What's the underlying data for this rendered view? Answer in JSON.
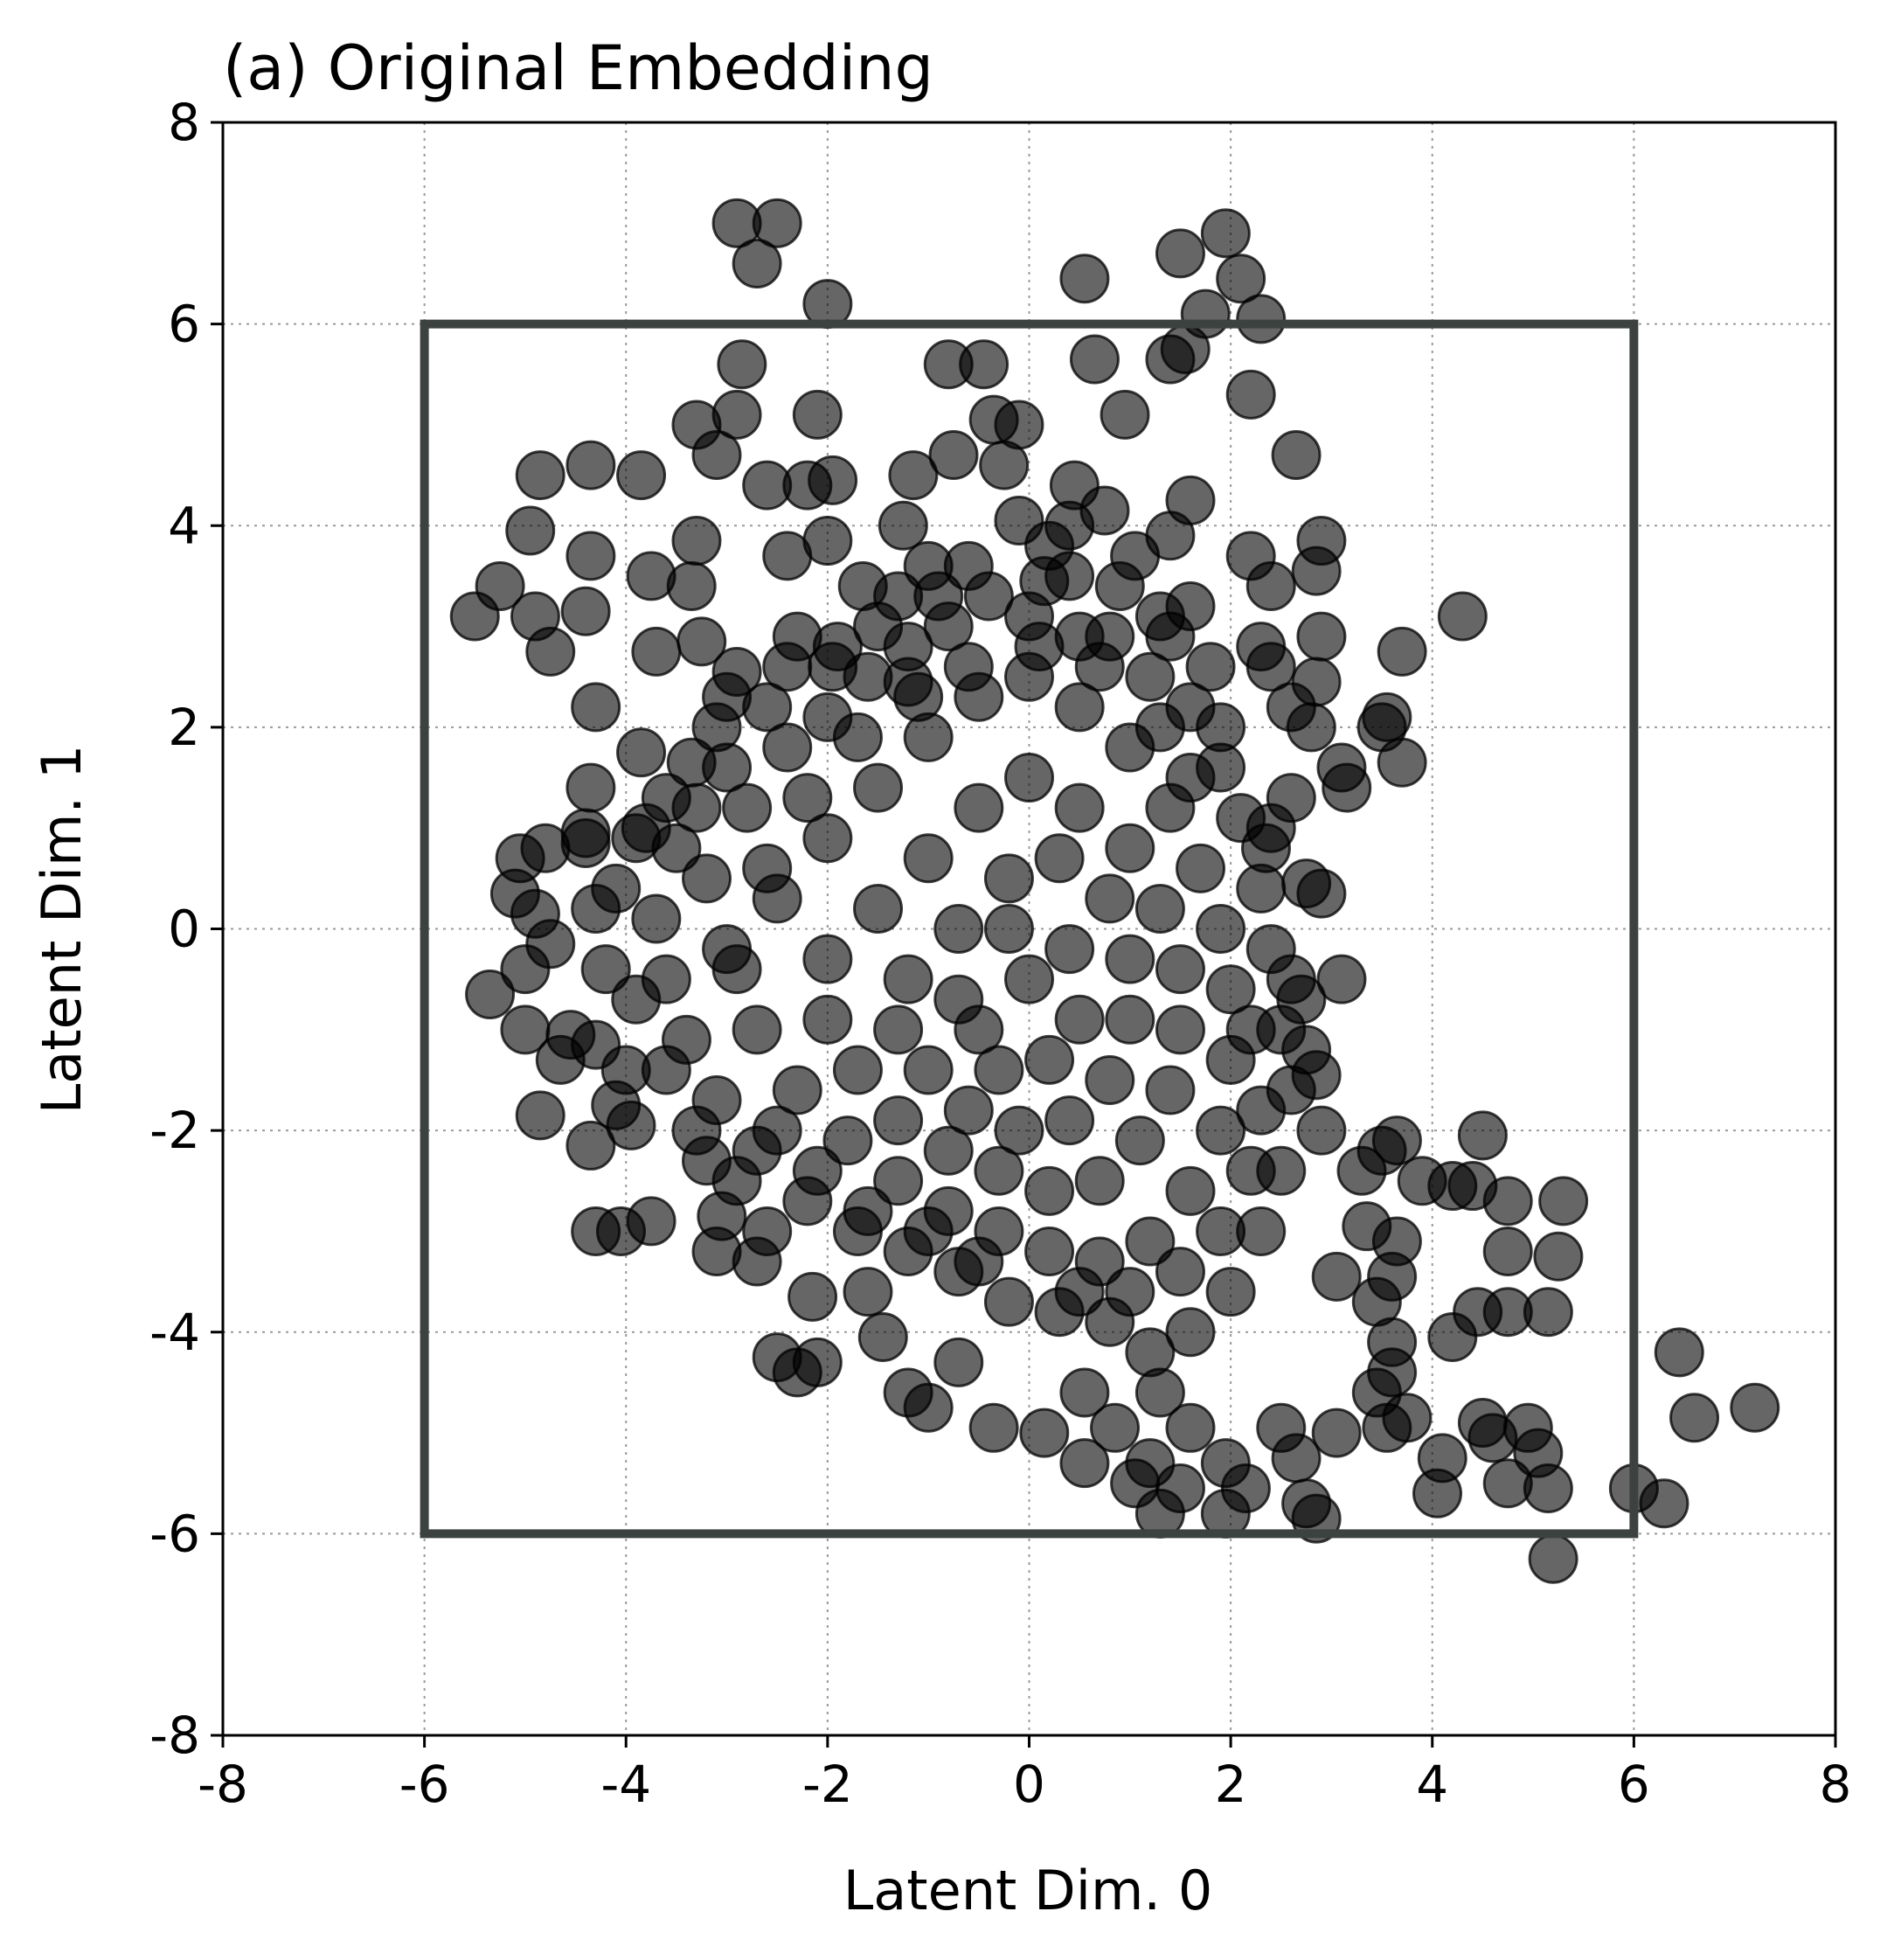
{
  "chart_data": {
    "type": "scatter",
    "title": "(a) Original Embedding",
    "xlabel": "Latent Dim. 0",
    "ylabel": "Latent Dim. 1",
    "xlim": [
      -8,
      8
    ],
    "ylim": [
      -8,
      8
    ],
    "xticks": [
      -8,
      -6,
      -4,
      -2,
      0,
      2,
      4,
      6,
      8
    ],
    "yticks": [
      -8,
      -6,
      -4,
      -2,
      0,
      2,
      4,
      6,
      8
    ],
    "xtick_labels": [
      "-8",
      "-6",
      "-4",
      "-2",
      "0",
      "2",
      "4",
      "6",
      "8"
    ],
    "ytick_labels": [
      "-8",
      "-6",
      "-4",
      "-2",
      "0",
      "2",
      "4",
      "6",
      "8"
    ],
    "grid": true,
    "marker_color": "#000000",
    "marker_alpha": 0.6,
    "box_color": "#3b4240",
    "box": {
      "x": [
        -6,
        6
      ],
      "y": [
        -6,
        6
      ]
    },
    "points": [
      [
        -2.9,
        7.0
      ],
      [
        -2.5,
        7.0
      ],
      [
        -2.7,
        6.6
      ],
      [
        -2.0,
        6.2
      ],
      [
        1.95,
        6.9
      ],
      [
        1.5,
        6.7
      ],
      [
        2.1,
        6.45
      ],
      [
        0.55,
        6.45
      ],
      [
        1.75,
        6.1
      ],
      [
        2.3,
        6.05
      ],
      [
        -2.85,
        5.6
      ],
      [
        -0.8,
        5.6
      ],
      [
        -0.45,
        5.6
      ],
      [
        0.65,
        5.65
      ],
      [
        1.4,
        5.65
      ],
      [
        1.55,
        5.75
      ],
      [
        2.2,
        5.3
      ],
      [
        -2.9,
        5.1
      ],
      [
        -3.3,
        5.0
      ],
      [
        -2.1,
        5.1
      ],
      [
        -0.35,
        5.05
      ],
      [
        -0.1,
        5.0
      ],
      [
        0.95,
        5.1
      ],
      [
        2.65,
        4.7
      ],
      [
        -4.85,
        4.5
      ],
      [
        -4.35,
        4.6
      ],
      [
        -3.85,
        4.5
      ],
      [
        -3.1,
        4.7
      ],
      [
        -2.6,
        4.4
      ],
      [
        -2.2,
        4.4
      ],
      [
        -1.95,
        4.45
      ],
      [
        -1.15,
        4.5
      ],
      [
        -0.75,
        4.7
      ],
      [
        -0.25,
        4.6
      ],
      [
        0.45,
        4.4
      ],
      [
        1.6,
        4.25
      ],
      [
        -4.95,
        3.95
      ],
      [
        -3.3,
        3.85
      ],
      [
        -2.0,
        3.85
      ],
      [
        -1.25,
        4.0
      ],
      [
        -0.1,
        4.05
      ],
      [
        0.75,
        4.15
      ],
      [
        1.05,
        3.7
      ],
      [
        1.4,
        3.9
      ],
      [
        2.2,
        3.7
      ],
      [
        2.9,
        3.85
      ],
      [
        -5.25,
        3.4
      ],
      [
        -4.35,
        3.7
      ],
      [
        -3.75,
        3.5
      ],
      [
        -3.35,
        3.4
      ],
      [
        -2.4,
        3.7
      ],
      [
        -1.65,
        3.4
      ],
      [
        -0.9,
        3.3
      ],
      [
        0.15,
        3.45
      ],
      [
        1.6,
        3.2
      ],
      [
        2.4,
        3.4
      ],
      [
        2.85,
        3.55
      ],
      [
        4.3,
        3.1
      ],
      [
        -5.5,
        3.1
      ],
      [
        -4.9,
        3.1
      ],
      [
        -4.4,
        3.15
      ],
      [
        -3.25,
        2.85
      ],
      [
        -2.3,
        2.9
      ],
      [
        -1.5,
        3.0
      ],
      [
        0.5,
        2.9
      ],
      [
        1.3,
        3.1
      ],
      [
        2.3,
        2.8
      ],
      [
        2.9,
        2.9
      ],
      [
        -4.75,
        2.75
      ],
      [
        -3.7,
        2.75
      ],
      [
        -2.9,
        2.55
      ],
      [
        -1.95,
        2.6
      ],
      [
        2.4,
        2.6
      ],
      [
        2.85,
        2.45
      ],
      [
        3.7,
        2.75
      ],
      [
        -4.3,
        2.2
      ],
      [
        -3.0,
        2.3
      ],
      [
        -1.2,
        2.45
      ],
      [
        2.6,
        2.2
      ],
      [
        3.55,
        2.1
      ],
      [
        -3.1,
        2.0
      ],
      [
        1.9,
        2.0
      ],
      [
        2.8,
        2.0
      ],
      [
        3.5,
        2.0
      ],
      [
        -3.85,
        1.75
      ],
      [
        -3.35,
        1.65
      ],
      [
        3.1,
        1.6
      ],
      [
        3.7,
        1.65
      ],
      [
        -4.35,
        1.4
      ],
      [
        -3.6,
        1.3
      ],
      [
        2.6,
        1.3
      ],
      [
        3.15,
        1.4
      ],
      [
        -4.4,
        0.95
      ],
      [
        -3.8,
        1.0
      ],
      [
        2.4,
        1.0
      ],
      [
        -5.05,
        0.7
      ],
      [
        -4.8,
        0.8
      ],
      [
        -4.4,
        0.85
      ],
      [
        2.35,
        0.8
      ],
      [
        -5.1,
        0.35
      ],
      [
        -4.9,
        0.15
      ],
      [
        -4.3,
        0.2
      ],
      [
        2.75,
        0.45
      ],
      [
        2.9,
        0.35
      ],
      [
        -4.75,
        -0.15
      ],
      [
        -5.0,
        -0.4
      ],
      [
        -4.2,
        -0.4
      ],
      [
        2.6,
        -0.5
      ],
      [
        3.1,
        -0.5
      ],
      [
        -5.35,
        -0.65
      ],
      [
        -5.0,
        -1.0
      ],
      [
        -4.55,
        -1.05
      ],
      [
        2.7,
        -0.7
      ],
      [
        -4.65,
        -1.3
      ],
      [
        -4.3,
        -1.15
      ],
      [
        2.75,
        -1.2
      ],
      [
        2.85,
        -1.45
      ],
      [
        -4.85,
        -1.85
      ],
      [
        -4.1,
        -1.75
      ],
      [
        -3.95,
        -1.95
      ],
      [
        -4.35,
        -2.15
      ],
      [
        2.9,
        -2.0
      ],
      [
        3.3,
        -2.4
      ],
      [
        3.5,
        -2.2
      ],
      [
        3.65,
        -2.1
      ],
      [
        4.5,
        -2.05
      ],
      [
        -3.2,
        -2.3
      ],
      [
        3.9,
        -2.5
      ],
      [
        4.2,
        -2.55
      ],
      [
        4.4,
        -2.55
      ],
      [
        4.75,
        -2.7
      ],
      [
        5.3,
        -2.7
      ],
      [
        -3.75,
        -2.9
      ],
      [
        -4.3,
        -3.0
      ],
      [
        -4.05,
        -3.0
      ],
      [
        -3.05,
        -2.85
      ],
      [
        -2.6,
        -3.0
      ],
      [
        3.35,
        -2.95
      ],
      [
        3.65,
        -3.1
      ],
      [
        4.75,
        -3.2
      ],
      [
        5.25,
        -3.25
      ],
      [
        -3.1,
        -3.2
      ],
      [
        -2.7,
        -3.3
      ],
      [
        3.05,
        -3.45
      ],
      [
        3.6,
        -3.45
      ],
      [
        -2.15,
        -3.65
      ],
      [
        -1.6,
        -3.6
      ],
      [
        3.45,
        -3.7
      ],
      [
        4.45,
        -3.8
      ],
      [
        4.75,
        -3.8
      ],
      [
        5.15,
        -3.8
      ],
      [
        -1.45,
        -4.05
      ],
      [
        4.2,
        -4.05
      ],
      [
        3.6,
        -4.1
      ],
      [
        -2.5,
        -4.25
      ],
      [
        -2.1,
        -4.3
      ],
      [
        -2.3,
        -4.4
      ],
      [
        -0.7,
        -4.3
      ],
      [
        3.6,
        -4.4
      ],
      [
        6.45,
        -4.2
      ],
      [
        -1.2,
        -4.6
      ],
      [
        -1.0,
        -4.75
      ],
      [
        0.55,
        -4.6
      ],
      [
        1.3,
        -4.6
      ],
      [
        3.45,
        -4.6
      ],
      [
        3.75,
        -4.85
      ],
      [
        7.2,
        -4.75
      ],
      [
        6.6,
        -4.85
      ],
      [
        -0.35,
        -4.95
      ],
      [
        0.15,
        -5.0
      ],
      [
        0.85,
        -4.95
      ],
      [
        1.6,
        -4.95
      ],
      [
        2.5,
        -4.95
      ],
      [
        3.05,
        -5.0
      ],
      [
        3.55,
        -4.95
      ],
      [
        4.5,
        -4.9
      ],
      [
        4.6,
        -5.05
      ],
      [
        4.95,
        -4.95
      ],
      [
        5.05,
        -5.2
      ],
      [
        0.55,
        -5.3
      ],
      [
        1.2,
        -5.3
      ],
      [
        1.95,
        -5.3
      ],
      [
        2.65,
        -5.25
      ],
      [
        4.1,
        -5.25
      ],
      [
        4.75,
        -5.5
      ],
      [
        1.05,
        -5.5
      ],
      [
        1.5,
        -5.55
      ],
      [
        2.15,
        -5.55
      ],
      [
        4.05,
        -5.6
      ],
      [
        5.15,
        -5.55
      ],
      [
        6.0,
        -5.55
      ],
      [
        6.3,
        -5.7
      ],
      [
        1.3,
        -5.8
      ],
      [
        1.95,
        -5.8
      ],
      [
        2.75,
        -5.7
      ],
      [
        2.85,
        -5.85
      ],
      [
        5.2,
        -6.25
      ],
      [
        -3.2,
        0.5
      ],
      [
        -2.8,
        1.2
      ],
      [
        -2.4,
        1.8
      ],
      [
        -2.0,
        2.1
      ],
      [
        -1.6,
        2.5
      ],
      [
        -1.2,
        2.8
      ],
      [
        -0.8,
        3.0
      ],
      [
        -0.4,
        3.3
      ],
      [
        0.0,
        3.1
      ],
      [
        0.4,
        3.5
      ],
      [
        0.8,
        2.9
      ],
      [
        1.2,
        2.5
      ],
      [
        1.6,
        2.2
      ],
      [
        1.9,
        1.6
      ],
      [
        2.1,
        1.1
      ],
      [
        2.3,
        0.4
      ],
      [
        2.4,
        -0.2
      ],
      [
        2.5,
        -1.0
      ],
      [
        2.6,
        -1.6
      ],
      [
        2.5,
        -2.4
      ],
      [
        2.3,
        -3.0
      ],
      [
        2.0,
        -3.6
      ],
      [
        1.6,
        -4.0
      ],
      [
        1.2,
        -4.2
      ],
      [
        0.8,
        -3.9
      ],
      [
        0.3,
        -3.8
      ],
      [
        -0.2,
        -3.7
      ],
      [
        -0.7,
        -3.4
      ],
      [
        -1.2,
        -3.2
      ],
      [
        -1.7,
        -3.0
      ],
      [
        -2.2,
        -2.7
      ],
      [
        -2.7,
        -2.2
      ],
      [
        -3.1,
        -1.7
      ],
      [
        -3.4,
        -1.1
      ],
      [
        -3.6,
        -0.5
      ],
      [
        -3.7,
        0.1
      ],
      [
        -3.5,
        0.8
      ],
      [
        -3.0,
        -0.2
      ],
      [
        -2.5,
        0.3
      ],
      [
        -2.0,
        0.9
      ],
      [
        -1.5,
        1.4
      ],
      [
        -1.0,
        1.9
      ],
      [
        -0.5,
        2.3
      ],
      [
        0.0,
        2.5
      ],
      [
        0.5,
        2.2
      ],
      [
        1.0,
        1.8
      ],
      [
        1.4,
        1.2
      ],
      [
        1.7,
        0.6
      ],
      [
        1.9,
        0.0
      ],
      [
        2.0,
        -0.6
      ],
      [
        2.0,
        -1.3
      ],
      [
        1.9,
        -2.0
      ],
      [
        1.6,
        -2.6
      ],
      [
        1.2,
        -3.1
      ],
      [
        0.7,
        -3.3
      ],
      [
        0.2,
        -3.2
      ],
      [
        -0.3,
        -3.0
      ],
      [
        -0.8,
        -2.8
      ],
      [
        -1.3,
        -2.5
      ],
      [
        -1.8,
        -2.1
      ],
      [
        -2.3,
        -1.6
      ],
      [
        -2.7,
        -1.0
      ],
      [
        -2.9,
        -0.4
      ],
      [
        -2.6,
        0.6
      ],
      [
        -2.2,
        1.3
      ],
      [
        -1.7,
        1.9
      ],
      [
        -1.1,
        2.3
      ],
      [
        -0.6,
        2.6
      ],
      [
        0.1,
        2.8
      ],
      [
        0.7,
        2.6
      ],
      [
        1.3,
        2.0
      ],
      [
        1.6,
        1.5
      ],
      [
        -2.0,
        -0.3
      ],
      [
        -1.5,
        0.2
      ],
      [
        -1.0,
        0.7
      ],
      [
        -0.5,
        1.2
      ],
      [
        0.0,
        1.5
      ],
      [
        0.5,
        1.2
      ],
      [
        1.0,
        0.8
      ],
      [
        1.3,
        0.2
      ],
      [
        1.5,
        -0.4
      ],
      [
        1.5,
        -1.0
      ],
      [
        1.4,
        -1.6
      ],
      [
        1.1,
        -2.1
      ],
      [
        0.7,
        -2.5
      ],
      [
        0.2,
        -2.6
      ],
      [
        -0.3,
        -2.4
      ],
      [
        -0.8,
        -2.2
      ],
      [
        -1.3,
        -1.9
      ],
      [
        -1.7,
        -1.4
      ],
      [
        -2.0,
        -0.9
      ],
      [
        -1.2,
        -0.5
      ],
      [
        -0.7,
        0.0
      ],
      [
        -0.2,
        0.5
      ],
      [
        0.3,
        0.7
      ],
      [
        0.8,
        0.3
      ],
      [
        1.0,
        -0.3
      ],
      [
        1.0,
        -0.9
      ],
      [
        0.8,
        -1.5
      ],
      [
        0.4,
        -1.9
      ],
      [
        -0.1,
        -2.0
      ],
      [
        -0.6,
        -1.8
      ],
      [
        -1.0,
        -1.4
      ],
      [
        -1.3,
        -1.0
      ],
      [
        -0.5,
        -1.0
      ],
      [
        0.0,
        -0.5
      ],
      [
        0.4,
        -0.2
      ],
      [
        0.5,
        -0.9
      ],
      [
        0.2,
        -1.3
      ],
      [
        -0.3,
        -1.4
      ],
      [
        -0.7,
        -0.7
      ],
      [
        -0.2,
        0.0
      ],
      [
        -3.9,
        -0.7
      ],
      [
        -3.6,
        -1.4
      ],
      [
        -3.3,
        -2.0
      ],
      [
        -2.9,
        -2.5
      ],
      [
        -2.5,
        -2.0
      ],
      [
        -2.1,
        -2.4
      ],
      [
        -1.6,
        -2.8
      ],
      [
        -1.0,
        -3.0
      ],
      [
        -0.5,
        -3.3
      ],
      [
        0.5,
        -3.6
      ],
      [
        1.0,
        -3.6
      ],
      [
        1.5,
        -3.4
      ],
      [
        1.9,
        -3.0
      ],
      [
        2.2,
        -2.4
      ],
      [
        2.3,
        -1.8
      ],
      [
        2.2,
        -1.0
      ],
      [
        -3.0,
        1.6
      ],
      [
        -2.6,
        2.2
      ],
      [
        -1.9,
        2.8
      ],
      [
        -1.3,
        3.3
      ],
      [
        -0.6,
        3.6
      ],
      [
        0.2,
        3.8
      ],
      [
        0.9,
        3.4
      ],
      [
        1.4,
        2.9
      ],
      [
        1.8,
        2.6
      ],
      [
        -4.0,
        -1.4
      ],
      [
        -4.1,
        0.4
      ],
      [
        -3.9,
        0.9
      ],
      [
        -3.3,
        1.2
      ],
      [
        -2.4,
        2.6
      ],
      [
        -1.0,
        3.6
      ],
      [
        0.4,
        4.0
      ]
    ]
  }
}
